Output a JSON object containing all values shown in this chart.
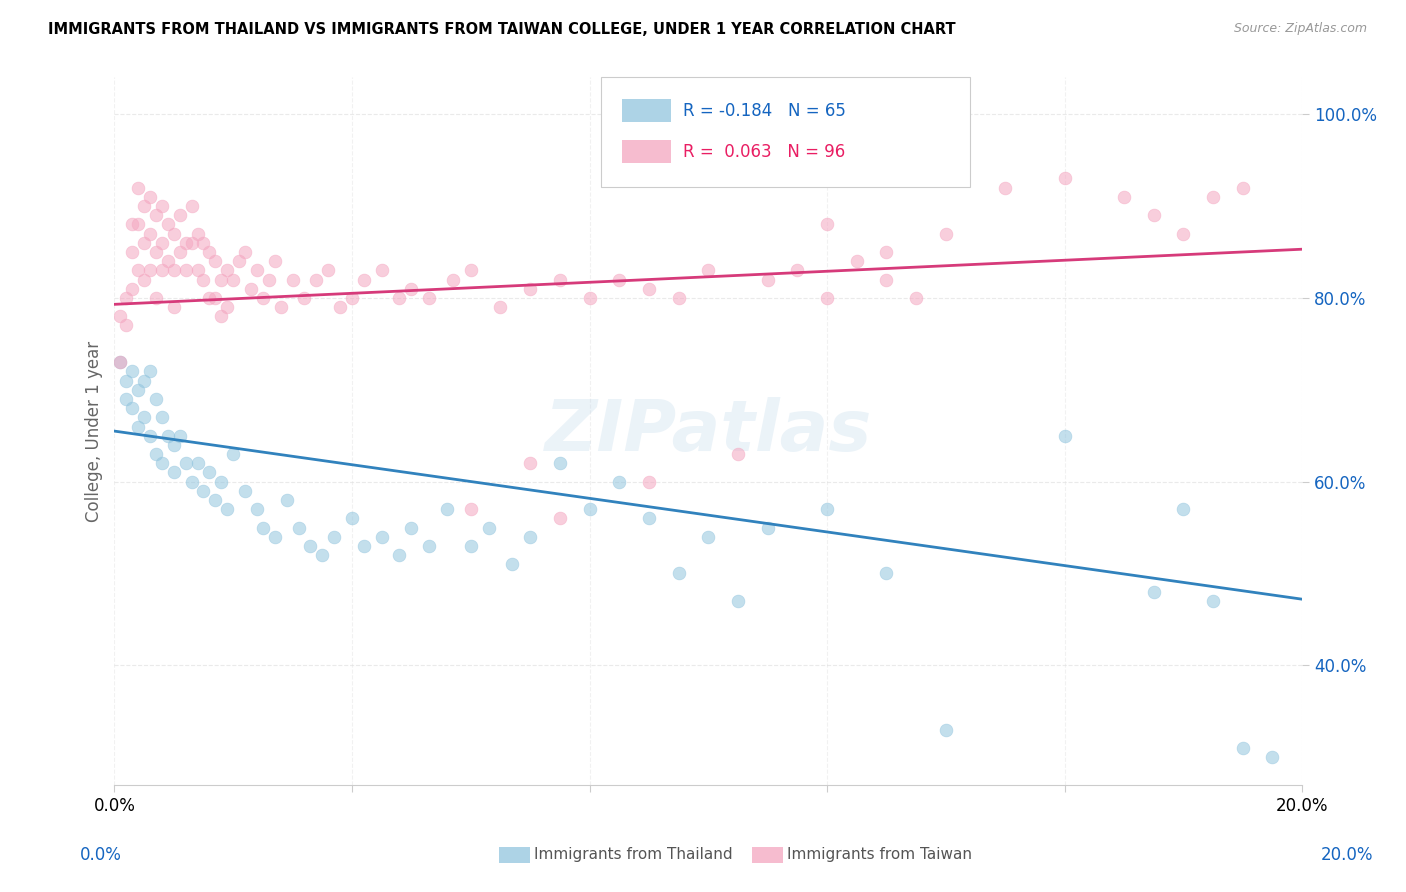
{
  "title": "IMMIGRANTS FROM THAILAND VS IMMIGRANTS FROM TAIWAN COLLEGE, UNDER 1 YEAR CORRELATION CHART",
  "source": "Source: ZipAtlas.com",
  "ylabel": "College, Under 1 year",
  "xmin": 0.0,
  "xmax": 0.2,
  "ymin": 0.27,
  "ymax": 1.04,
  "ytick_vals": [
    0.4,
    0.6,
    0.8,
    1.0
  ],
  "ytick_labels": [
    "40.0%",
    "60.0%",
    "80.0%",
    "100.0%"
  ],
  "xtick_vals": [
    0.0,
    0.04,
    0.08,
    0.12,
    0.16,
    0.2
  ],
  "xtick_labels": [
    "0.0%",
    "",
    "",
    "",
    "",
    "20.0%"
  ],
  "blue_R": -0.184,
  "blue_N": 65,
  "pink_R": 0.063,
  "pink_N": 96,
  "blue_color": "#92c5de",
  "pink_color": "#f4a6c0",
  "blue_line_color": "#3182bd",
  "pink_line_color": "#d63a7a",
  "blue_label": "Immigrants from Thailand",
  "pink_label": "Immigrants from Taiwan",
  "watermark": "ZIPatlas",
  "figsize": [
    14.06,
    8.92
  ],
  "dpi": 100,
  "blue_x": [
    0.001,
    0.002,
    0.002,
    0.003,
    0.003,
    0.004,
    0.004,
    0.005,
    0.005,
    0.006,
    0.006,
    0.007,
    0.007,
    0.008,
    0.008,
    0.009,
    0.01,
    0.01,
    0.011,
    0.012,
    0.013,
    0.014,
    0.015,
    0.016,
    0.017,
    0.018,
    0.019,
    0.02,
    0.022,
    0.024,
    0.025,
    0.027,
    0.029,
    0.031,
    0.033,
    0.035,
    0.037,
    0.04,
    0.042,
    0.045,
    0.048,
    0.05,
    0.053,
    0.056,
    0.06,
    0.063,
    0.067,
    0.07,
    0.075,
    0.08,
    0.085,
    0.09,
    0.095,
    0.1,
    0.105,
    0.11,
    0.12,
    0.13,
    0.14,
    0.16,
    0.175,
    0.18,
    0.185,
    0.19,
    0.195
  ],
  "blue_y": [
    0.73,
    0.71,
    0.69,
    0.72,
    0.68,
    0.7,
    0.66,
    0.71,
    0.67,
    0.72,
    0.65,
    0.69,
    0.63,
    0.67,
    0.62,
    0.65,
    0.64,
    0.61,
    0.65,
    0.62,
    0.6,
    0.62,
    0.59,
    0.61,
    0.58,
    0.6,
    0.57,
    0.63,
    0.59,
    0.57,
    0.55,
    0.54,
    0.58,
    0.55,
    0.53,
    0.52,
    0.54,
    0.56,
    0.53,
    0.54,
    0.52,
    0.55,
    0.53,
    0.57,
    0.53,
    0.55,
    0.51,
    0.54,
    0.62,
    0.57,
    0.6,
    0.56,
    0.5,
    0.54,
    0.47,
    0.55,
    0.57,
    0.5,
    0.33,
    0.65,
    0.48,
    0.57,
    0.47,
    0.31,
    0.3
  ],
  "pink_x": [
    0.001,
    0.001,
    0.002,
    0.002,
    0.003,
    0.003,
    0.003,
    0.004,
    0.004,
    0.004,
    0.005,
    0.005,
    0.005,
    0.006,
    0.006,
    0.006,
    0.007,
    0.007,
    0.007,
    0.008,
    0.008,
    0.008,
    0.009,
    0.009,
    0.01,
    0.01,
    0.01,
    0.011,
    0.011,
    0.012,
    0.012,
    0.013,
    0.013,
    0.014,
    0.014,
    0.015,
    0.015,
    0.016,
    0.016,
    0.017,
    0.017,
    0.018,
    0.018,
    0.019,
    0.019,
    0.02,
    0.021,
    0.022,
    0.023,
    0.024,
    0.025,
    0.026,
    0.027,
    0.028,
    0.03,
    0.032,
    0.034,
    0.036,
    0.038,
    0.04,
    0.042,
    0.045,
    0.048,
    0.05,
    0.053,
    0.057,
    0.06,
    0.065,
    0.07,
    0.075,
    0.08,
    0.085,
    0.09,
    0.095,
    0.1,
    0.11,
    0.12,
    0.125,
    0.13,
    0.135,
    0.06,
    0.07,
    0.075,
    0.09,
    0.105,
    0.115,
    0.12,
    0.13,
    0.14,
    0.15,
    0.16,
    0.17,
    0.175,
    0.18,
    0.185,
    0.19
  ],
  "pink_y": [
    0.78,
    0.73,
    0.8,
    0.77,
    0.88,
    0.85,
    0.81,
    0.92,
    0.88,
    0.83,
    0.9,
    0.86,
    0.82,
    0.91,
    0.87,
    0.83,
    0.89,
    0.85,
    0.8,
    0.9,
    0.86,
    0.83,
    0.88,
    0.84,
    0.87,
    0.83,
    0.79,
    0.89,
    0.85,
    0.86,
    0.83,
    0.9,
    0.86,
    0.87,
    0.83,
    0.86,
    0.82,
    0.85,
    0.8,
    0.84,
    0.8,
    0.82,
    0.78,
    0.83,
    0.79,
    0.82,
    0.84,
    0.85,
    0.81,
    0.83,
    0.8,
    0.82,
    0.84,
    0.79,
    0.82,
    0.8,
    0.82,
    0.83,
    0.79,
    0.8,
    0.82,
    0.83,
    0.8,
    0.81,
    0.8,
    0.82,
    0.83,
    0.79,
    0.81,
    0.82,
    0.8,
    0.82,
    0.81,
    0.8,
    0.83,
    0.82,
    0.8,
    0.84,
    0.82,
    0.8,
    0.57,
    0.62,
    0.56,
    0.6,
    0.63,
    0.83,
    0.88,
    0.85,
    0.87,
    0.92,
    0.93,
    0.91,
    0.89,
    0.87,
    0.91,
    0.92
  ]
}
